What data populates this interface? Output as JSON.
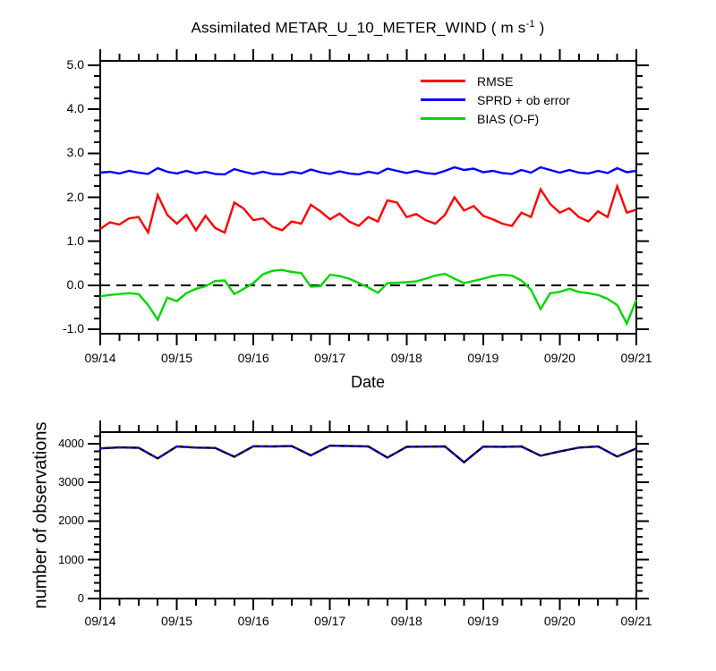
{
  "colors": {
    "rmse": "#ff0000",
    "sprd": "#0000ff",
    "bias": "#00d800",
    "obs_line": "#000000",
    "obs_overlay_dash": "#0000ff",
    "axis": "#000000",
    "zero_line": "#000000"
  },
  "chart_data": [
    {
      "type": "line",
      "panel": "statistics",
      "title": "Assimilated METAR_U_10_METER_WIND ( m s-1 )",
      "title_pre": "Assimilated METAR_U_10_METER_WIND ( m s",
      "title_sup": "-1",
      "title_post": " )",
      "xlabel": "Date",
      "x_tick_labels": [
        "09/14",
        "09/15",
        "09/16",
        "09/17",
        "09/18",
        "09/19",
        "09/20",
        "09/21"
      ],
      "x_range_days": [
        0,
        7
      ],
      "x_minor_step_days": 0.25,
      "x_step_days": 0.125,
      "ylim": [
        -1.1,
        5.1
      ],
      "y_major_ticks": [
        -1,
        0,
        1,
        2,
        3,
        4,
        5
      ],
      "y_tick_labels": [
        "-1.0",
        "0.0",
        "1.0",
        "2.0",
        "3.0",
        "4.0",
        "5.0"
      ],
      "y_minor_step": 0.25,
      "grid": false,
      "legend_position": "inside-upper-right",
      "zero_reference_line": {
        "style": "dashed",
        "color": "#000000"
      },
      "series": [
        {
          "name": "RMSE",
          "color": "#ff0000",
          "values": [
            1.28,
            1.43,
            1.38,
            1.52,
            1.55,
            1.2,
            2.05,
            1.6,
            1.4,
            1.6,
            1.25,
            1.58,
            1.3,
            1.2,
            1.88,
            1.74,
            1.48,
            1.52,
            1.33,
            1.25,
            1.45,
            1.4,
            1.83,
            1.68,
            1.5,
            1.63,
            1.45,
            1.35,
            1.55,
            1.45,
            1.93,
            1.88,
            1.55,
            1.62,
            1.48,
            1.4,
            1.6,
            2.0,
            1.7,
            1.8,
            1.58,
            1.5,
            1.4,
            1.35,
            1.65,
            1.55,
            2.18,
            1.85,
            1.65,
            1.75,
            1.55,
            1.45,
            1.68,
            1.55,
            2.25,
            1.65,
            1.72
          ]
        },
        {
          "name": "SPRD + ob error",
          "color": "#0000ff",
          "values": [
            2.56,
            2.58,
            2.54,
            2.6,
            2.56,
            2.53,
            2.66,
            2.58,
            2.54,
            2.6,
            2.54,
            2.58,
            2.53,
            2.52,
            2.64,
            2.58,
            2.53,
            2.58,
            2.53,
            2.52,
            2.58,
            2.54,
            2.63,
            2.57,
            2.53,
            2.59,
            2.54,
            2.52,
            2.58,
            2.54,
            2.65,
            2.6,
            2.55,
            2.6,
            2.55,
            2.53,
            2.6,
            2.68,
            2.62,
            2.65,
            2.57,
            2.6,
            2.55,
            2.53,
            2.62,
            2.56,
            2.68,
            2.62,
            2.56,
            2.62,
            2.56,
            2.54,
            2.6,
            2.55,
            2.66,
            2.57,
            2.6
          ]
        },
        {
          "name": "BIAS (O-F)",
          "color": "#00d800",
          "values": [
            -0.25,
            -0.22,
            -0.2,
            -0.18,
            -0.2,
            -0.45,
            -0.78,
            -0.28,
            -0.36,
            -0.18,
            -0.08,
            -0.02,
            0.1,
            0.11,
            -0.2,
            -0.08,
            0.05,
            0.25,
            0.33,
            0.35,
            0.3,
            0.28,
            -0.03,
            -0.02,
            0.24,
            0.21,
            0.15,
            0.05,
            -0.05,
            -0.17,
            0.05,
            0.06,
            0.07,
            0.09,
            0.15,
            0.22,
            0.26,
            0.15,
            0.05,
            0.1,
            0.15,
            0.21,
            0.24,
            0.22,
            0.11,
            -0.1,
            -0.54,
            -0.18,
            -0.15,
            -0.08,
            -0.15,
            -0.18,
            -0.22,
            -0.31,
            -0.45,
            -0.87,
            -0.33
          ]
        }
      ]
    },
    {
      "type": "line",
      "panel": "observation-count",
      "ylabel": "number of observations",
      "x_tick_labels": [
        "09/14",
        "09/15",
        "09/16",
        "09/17",
        "09/18",
        "09/19",
        "09/20",
        "09/21"
      ],
      "x_range_days": [
        0,
        7
      ],
      "x_minor_step_days": 0.25,
      "x_step_days": 0.25,
      "ylim": [
        0,
        4300
      ],
      "y_major_ticks": [
        0,
        1000,
        2000,
        3000,
        4000
      ],
      "y_tick_labels": [
        "0",
        "1000",
        "2000",
        "3000",
        "4000"
      ],
      "y_minor_step": 200,
      "grid": false,
      "series": [
        {
          "name": "number of observations",
          "color": "#000000",
          "overlay_dash_color": "#0000ff",
          "values": [
            3880,
            3905,
            3895,
            3620,
            3930,
            3900,
            3890,
            3665,
            3935,
            3930,
            3940,
            3700,
            3950,
            3940,
            3930,
            3640,
            3920,
            3925,
            3930,
            3520,
            3925,
            3920,
            3930,
            3690,
            3800,
            3900,
            3930,
            3670,
            3880
          ]
        }
      ]
    }
  ]
}
